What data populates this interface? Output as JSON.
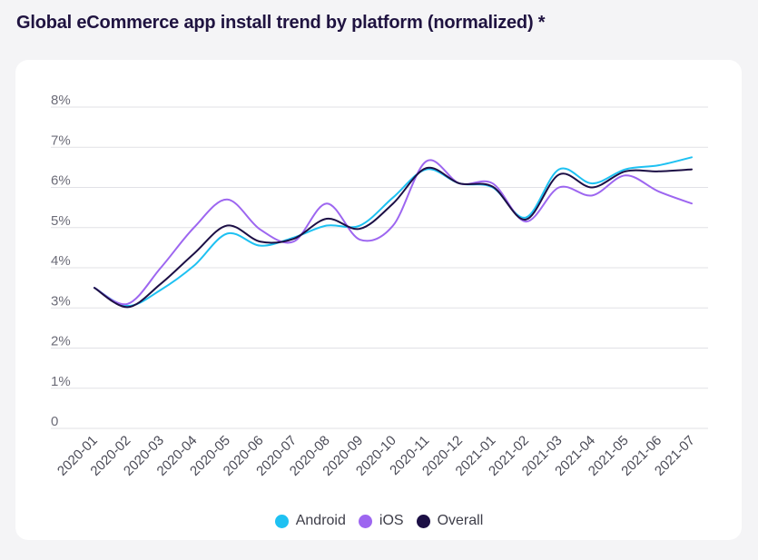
{
  "page": {
    "title": "Global eCommerce app install trend by platform (normalized) *"
  },
  "chart_data": {
    "type": "line",
    "title": "Global eCommerce app install trend by platform (normalized) *",
    "xlabel": "",
    "ylabel": "",
    "ylim": [
      0,
      8
    ],
    "y_ticks": [
      {
        "value": 0,
        "label": "0"
      },
      {
        "value": 1,
        "label": "1%"
      },
      {
        "value": 2,
        "label": "2%"
      },
      {
        "value": 3,
        "label": "3%"
      },
      {
        "value": 4,
        "label": "4%"
      },
      {
        "value": 5,
        "label": "5%"
      },
      {
        "value": 6,
        "label": "6%"
      },
      {
        "value": 7,
        "label": "7%"
      },
      {
        "value": 8,
        "label": "8%"
      }
    ],
    "categories": [
      "2020-01",
      "2020-02",
      "2020-03",
      "2020-04",
      "2020-05",
      "2020-06",
      "2020-07",
      "2020-08",
      "2020-09",
      "2020-10",
      "2020-11",
      "2020-12",
      "2021-01",
      "2021-02",
      "2021-03",
      "2021-04",
      "2021-05",
      "2021-06",
      "2021-07"
    ],
    "series": [
      {
        "name": "Android",
        "color": "#1ec1f2",
        "values": [
          3.5,
          3.05,
          3.45,
          4.05,
          4.85,
          4.55,
          4.75,
          5.05,
          5.05,
          5.75,
          6.45,
          6.1,
          6.0,
          5.25,
          6.45,
          6.1,
          6.45,
          6.55,
          6.75
        ]
      },
      {
        "name": "iOS",
        "color": "#9d66f0",
        "values": [
          3.5,
          3.1,
          4.0,
          5.0,
          5.7,
          4.95,
          4.65,
          5.6,
          4.7,
          5.05,
          6.65,
          6.1,
          6.1,
          5.15,
          6.0,
          5.8,
          6.3,
          5.9,
          5.6
        ]
      },
      {
        "name": "Overall",
        "color": "#1c0f45",
        "values": [
          3.5,
          3.02,
          3.6,
          4.35,
          5.05,
          4.65,
          4.72,
          5.22,
          4.97,
          5.6,
          6.48,
          6.1,
          6.02,
          5.2,
          6.32,
          6.0,
          6.4,
          6.4,
          6.45
        ]
      }
    ],
    "legend": {
      "placement": "bottom",
      "items": [
        "Android",
        "iOS",
        "Overall"
      ]
    },
    "grid": true
  }
}
